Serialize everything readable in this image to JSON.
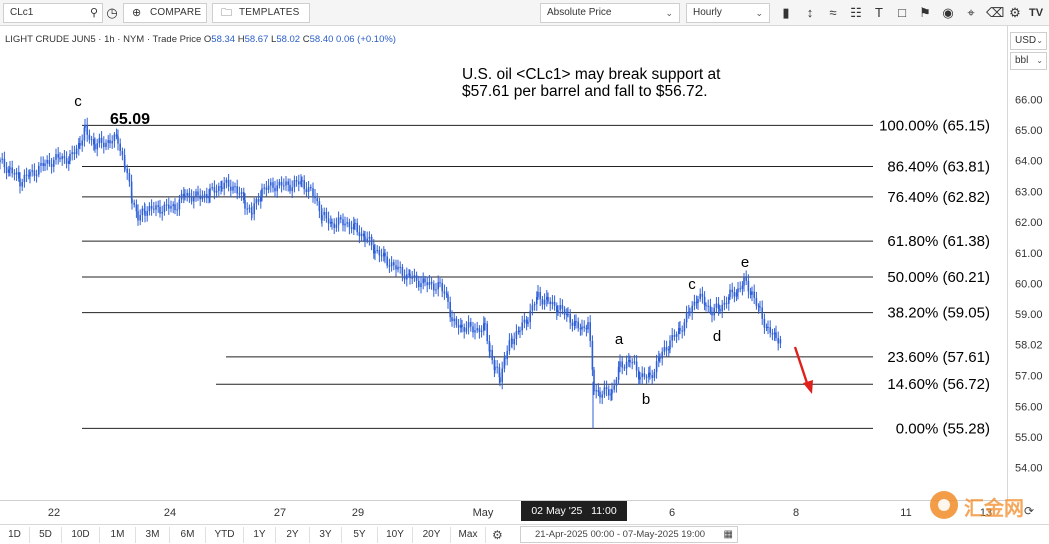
{
  "toolbar": {
    "symbol_value": "CLc1",
    "compare_label": "COMPARE",
    "templates_label": "TEMPLATES",
    "price_mode": "Absolute Price",
    "interval": "Hourly",
    "icons": [
      "bar-chart-icon",
      "draw-line-icon",
      "pattern-icon",
      "trend-icon",
      "text-tool-icon",
      "shape-icon",
      "flag-icon",
      "hide-icon",
      "settings-icon",
      "logo-icon"
    ]
  },
  "symbol_info": {
    "name": "LIGHT CRUDE JUN5",
    "interval": "1h",
    "exchange": "NYM",
    "price_type": "Trade Price",
    "o_label": "O",
    "o_value": "58.34",
    "h_label": "H",
    "h_value": "58.67",
    "l_label": "L",
    "l_value": "58.02",
    "c_label": "C",
    "c_value": "58.40",
    "change": "0.06 (+0.10%)"
  },
  "price_scale": {
    "currency": "USD",
    "unit": "bbl",
    "ticks": [
      "66.00",
      "65.00",
      "64.00",
      "63.00",
      "62.00",
      "61.00",
      "60.00",
      "59.00",
      "58.02",
      "57.00",
      "56.00",
      "55.00",
      "54.00"
    ]
  },
  "date_axis": {
    "ticks": [
      "22",
      "24",
      "27",
      "29",
      "May",
      "6",
      "8",
      "11",
      "13"
    ],
    "crosshair_date": "02 May '25",
    "crosshair_time": "11:00"
  },
  "range_buttons": [
    "1D",
    "5D",
    "10D",
    "1M",
    "3M",
    "6M",
    "YTD",
    "1Y",
    "2Y",
    "3Y",
    "5Y",
    "10Y",
    "20Y",
    "Max"
  ],
  "date_range": "21-Apr-2025 00:00  -  07-May-2025 19:00",
  "annotation": {
    "line1": "U.S. oil <CLc1> may break support at",
    "line2": "$57.61 per barrel and fall to $56.72."
  },
  "fib_levels": [
    {
      "label": "100.00% (65.15)",
      "price": 65.15
    },
    {
      "label": "86.40% (63.81)",
      "price": 63.81
    },
    {
      "label": "76.40% (62.82)",
      "price": 62.82
    },
    {
      "label": "61.80% (61.38)",
      "price": 61.38
    },
    {
      "label": "50.00% (60.21)",
      "price": 60.21
    },
    {
      "label": "38.20% (59.05)",
      "price": 59.05
    },
    {
      "label": "23.60% (57.61)",
      "price": 57.61
    },
    {
      "label": "14.60% (56.72)",
      "price": 56.72
    },
    {
      "label": "0.00% (55.28)",
      "price": 55.28
    }
  ],
  "wave_labels": {
    "c_top": "c",
    "peak_value": "65.09",
    "a": "a",
    "b": "b",
    "c": "c",
    "d": "d",
    "e": "e"
  },
  "watermark": "汇金网",
  "colors": {
    "candle": "#2f5fd6",
    "fib_line": "#222222",
    "arrow": "#e0201c",
    "crosshair_bg": "#1f1f1f"
  }
}
